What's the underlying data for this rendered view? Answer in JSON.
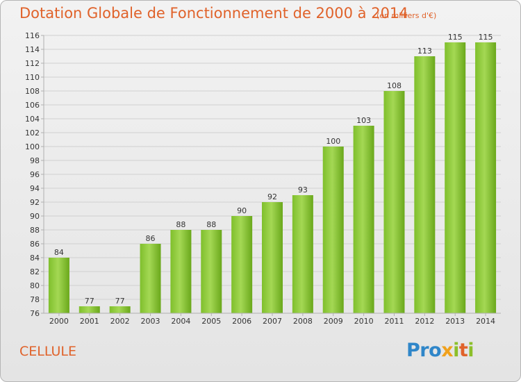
{
  "header": {
    "title": "Dotation Globale de Fonctionnement de 2000 à 2014",
    "subtitle": "(en milliers d'€)"
  },
  "footer": {
    "commune": "CELLULE",
    "logo_text": "Proxiti",
    "logo_letters": [
      {
        "char": "P",
        "color": "#2f86c9"
      },
      {
        "char": "r",
        "color": "#2f86c9"
      },
      {
        "char": "o",
        "color": "#2f86c9"
      },
      {
        "char": "x",
        "color": "#f0a11c"
      },
      {
        "char": "i",
        "color": "#8cbf2a"
      },
      {
        "char": "t",
        "color": "#e0622a"
      },
      {
        "char": "i",
        "color": "#8cbf2a"
      }
    ]
  },
  "colors": {
    "title": "#e0622a",
    "bar_light": "#9bd44a",
    "bar_dark": "#5e9a12",
    "grid": "#d0d0d0",
    "axis": "#b0b0b0",
    "label": "#333333"
  },
  "chart_data": {
    "type": "bar",
    "title": "Dotation Globale de Fonctionnement de 2000 à 2014",
    "subtitle": "(en milliers d'€)",
    "categories": [
      "2000",
      "2001",
      "2002",
      "2003",
      "2004",
      "2005",
      "2006",
      "2007",
      "2008",
      "2009",
      "2010",
      "2011",
      "2012",
      "2013",
      "2014"
    ],
    "values": [
      84,
      77,
      77,
      86,
      88,
      88,
      90,
      92,
      93,
      100,
      103,
      108,
      113,
      115,
      115
    ],
    "ylim": [
      76,
      116
    ],
    "yticks": [
      76,
      78,
      80,
      82,
      84,
      86,
      88,
      90,
      92,
      94,
      96,
      98,
      100,
      102,
      104,
      106,
      108,
      110,
      112,
      114,
      116
    ],
    "grid": true,
    "legend": "none"
  }
}
